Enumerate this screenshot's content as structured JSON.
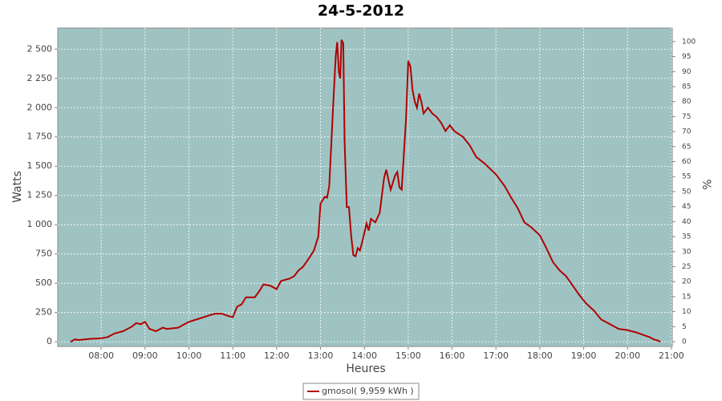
{
  "chart_data": {
    "type": "line",
    "title": "24-5-2012",
    "x_label": "Heures",
    "y_label": "Watts",
    "y2_label": "%",
    "x": [
      7.3,
      7.4,
      7.5,
      7.6,
      7.75,
      8.0,
      8.15,
      8.3,
      8.5,
      8.7,
      8.8,
      8.9,
      9.0,
      9.1,
      9.25,
      9.4,
      9.5,
      9.75,
      10.0,
      10.25,
      10.5,
      10.6,
      10.75,
      10.9,
      11.0,
      11.1,
      11.2,
      11.3,
      11.5,
      11.6,
      11.7,
      11.85,
      12.0,
      12.1,
      12.3,
      12.4,
      12.5,
      12.6,
      12.75,
      12.85,
      12.95,
      13.0,
      13.1,
      13.15,
      13.2,
      13.3,
      13.35,
      13.38,
      13.42,
      13.45,
      13.48,
      13.52,
      13.55,
      13.6,
      13.65,
      13.7,
      13.75,
      13.8,
      13.85,
      13.9,
      13.95,
      14.05,
      14.1,
      14.15,
      14.25,
      14.35,
      14.45,
      14.5,
      14.55,
      14.6,
      14.7,
      14.75,
      14.8,
      14.85,
      14.95,
      15.0,
      15.05,
      15.1,
      15.15,
      15.2,
      15.25,
      15.3,
      15.35,
      15.45,
      15.55,
      15.65,
      15.75,
      15.85,
      15.95,
      16.05,
      16.25,
      16.4,
      16.55,
      16.75,
      17.0,
      17.2,
      17.35,
      17.5,
      17.65,
      17.8,
      18.0,
      18.15,
      18.3,
      18.45,
      18.6,
      18.75,
      18.9,
      19.05,
      19.25,
      19.4,
      19.6,
      19.8,
      20.0,
      20.2,
      20.35,
      20.5,
      20.6,
      20.7,
      20.75
    ],
    "series": [
      {
        "name": "gmosol( 9,959 kWh )",
        "color": "#b00000",
        "values": [
          0,
          20,
          15,
          20,
          25,
          30,
          40,
          70,
          90,
          130,
          160,
          150,
          170,
          110,
          90,
          120,
          110,
          120,
          170,
          200,
          230,
          240,
          240,
          220,
          210,
          300,
          320,
          380,
          380,
          430,
          490,
          480,
          450,
          520,
          540,
          560,
          610,
          640,
          720,
          780,
          900,
          1180,
          1240,
          1230,
          1330,
          2100,
          2450,
          2560,
          2300,
          2250,
          2580,
          2550,
          1700,
          1150,
          1150,
          900,
          740,
          730,
          800,
          780,
          850,
          1010,
          950,
          1050,
          1020,
          1100,
          1400,
          1470,
          1380,
          1300,
          1420,
          1450,
          1320,
          1300,
          1900,
          2400,
          2350,
          2150,
          2050,
          2000,
          2120,
          2050,
          1950,
          2000,
          1950,
          1920,
          1870,
          1800,
          1850,
          1800,
          1750,
          1680,
          1580,
          1520,
          1430,
          1330,
          1230,
          1140,
          1020,
          980,
          910,
          800,
          680,
          610,
          560,
          480,
          400,
          330,
          260,
          190,
          150,
          110,
          100,
          80,
          60,
          40,
          20,
          10,
          0
        ]
      }
    ],
    "xlim": [
      7.01,
      21.02
    ],
    "xticks": [
      {
        "value": 8,
        "label": "08:00"
      },
      {
        "value": 9,
        "label": "09:00"
      },
      {
        "value": 10,
        "label": "10:00"
      },
      {
        "value": 11,
        "label": "11:00"
      },
      {
        "value": 12,
        "label": "12:00"
      },
      {
        "value": 13,
        "label": "13:00"
      },
      {
        "value": 14,
        "label": "14:00"
      },
      {
        "value": 15,
        "label": "15:00"
      },
      {
        "value": 16,
        "label": "16:00"
      },
      {
        "value": 17,
        "label": "17:00"
      },
      {
        "value": 18,
        "label": "18:00"
      },
      {
        "value": 19,
        "label": "19:00"
      },
      {
        "value": 20,
        "label": "20:00"
      },
      {
        "value": 21,
        "label": "21:00"
      }
    ],
    "ylim": [
      -40,
      2680
    ],
    "yticks": [
      0,
      250,
      500,
      750,
      {
        "value": 1000,
        "label": "1 000"
      },
      {
        "value": 1250,
        "label": "1 250"
      },
      {
        "value": 1500,
        "label": "1 500"
      },
      {
        "value": 1750,
        "label": "1 750"
      },
      {
        "value": 2000,
        "label": "2 000"
      },
      {
        "value": 2250,
        "label": "2 250"
      },
      {
        "value": 2500,
        "label": "2 500"
      }
    ],
    "y2lim": [
      -1.6,
      104.5
    ],
    "y2ticks": [
      0,
      5,
      10,
      15,
      20,
      25,
      30,
      35,
      40,
      45,
      50,
      55,
      60,
      65,
      70,
      75,
      80,
      85,
      90,
      95,
      100
    ],
    "grid": true,
    "background": "#9fc3c3",
    "legend": "bottom"
  }
}
